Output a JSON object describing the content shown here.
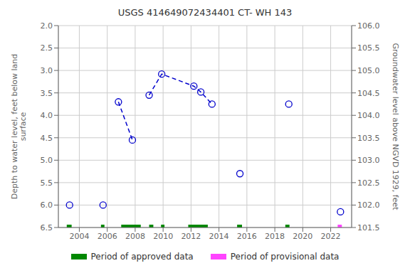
{
  "chart_data": {
    "type": "scatter",
    "title": "USGS 414649072434401 CT- WH  143",
    "y_label": "Depth to water level, feet below land\nsurface",
    "y2_label": "Groundwater level above NGVD 1929, feet",
    "xlim": [
      2002.5,
      2023.5
    ],
    "xticks": [
      2004,
      2006,
      2008,
      2010,
      2012,
      2014,
      2016,
      2018,
      2020,
      2022
    ],
    "ylim": [
      6.5,
      2.0
    ],
    "yticks": [
      {
        "value": 2.0,
        "label": "2.0"
      },
      2.5,
      {
        "value": 3.0,
        "label": "3.0"
      },
      3.5,
      {
        "value": 4.0,
        "label": "4.0"
      },
      4.5,
      {
        "value": 5.0,
        "label": "5.0"
      },
      5.5,
      {
        "value": 6.0,
        "label": "6.0"
      },
      6.5
    ],
    "y2lim": [
      101.5,
      106.0
    ],
    "y2ticks": [
      101.5,
      {
        "value": 102.0,
        "label": "102.0"
      },
      102.5,
      {
        "value": 103.0,
        "label": "103.0"
      },
      103.5,
      {
        "value": 104.0,
        "label": "104.0"
      },
      104.5,
      {
        "value": 105.0,
        "label": "105.0"
      },
      105.5,
      {
        "value": 106.0,
        "label": "106.0"
      }
    ],
    "grid": true,
    "legend": "bottom",
    "series": [
      {
        "type": "scatter",
        "marker": "circle",
        "color": "#0000cc",
        "x": [
          2003.3,
          2005.7,
          2006.8,
          2007.8,
          2009.0,
          2009.9,
          2012.2,
          2012.7,
          2013.5,
          2015.5,
          2019.0,
          2022.7
        ],
        "values": [
          6.0,
          6.0,
          3.7,
          4.55,
          3.55,
          3.08,
          3.35,
          3.48,
          3.75,
          5.3,
          3.75,
          6.15
        ]
      },
      {
        "type": "line",
        "line_style": "dashed",
        "color": "#0000cc",
        "x": [
          2006.8,
          2007.8
        ],
        "values": [
          3.7,
          4.55
        ]
      },
      {
        "type": "line",
        "line_style": "dashed",
        "color": "#0000cc",
        "x": [
          2009.0,
          2009.9,
          2012.2,
          2012.7,
          2013.5
        ],
        "values": [
          3.55,
          3.08,
          3.35,
          3.48,
          3.75
        ]
      },
      {
        "type": "range",
        "name": "Period of approved data",
        "color": "#008800",
        "ranges": [
          [
            2003.1,
            2003.45
          ],
          [
            2005.55,
            2005.8
          ],
          [
            2007.0,
            2008.4
          ],
          [
            2009.0,
            2009.3
          ],
          [
            2009.85,
            2010.1
          ],
          [
            2011.8,
            2013.2
          ],
          [
            2015.3,
            2015.65
          ],
          [
            2018.75,
            2019.05
          ]
        ]
      },
      {
        "type": "range",
        "name": "Period of provisional data",
        "color": "#ff44ff",
        "ranges": [
          [
            2022.5,
            2022.8
          ]
        ]
      }
    ]
  }
}
